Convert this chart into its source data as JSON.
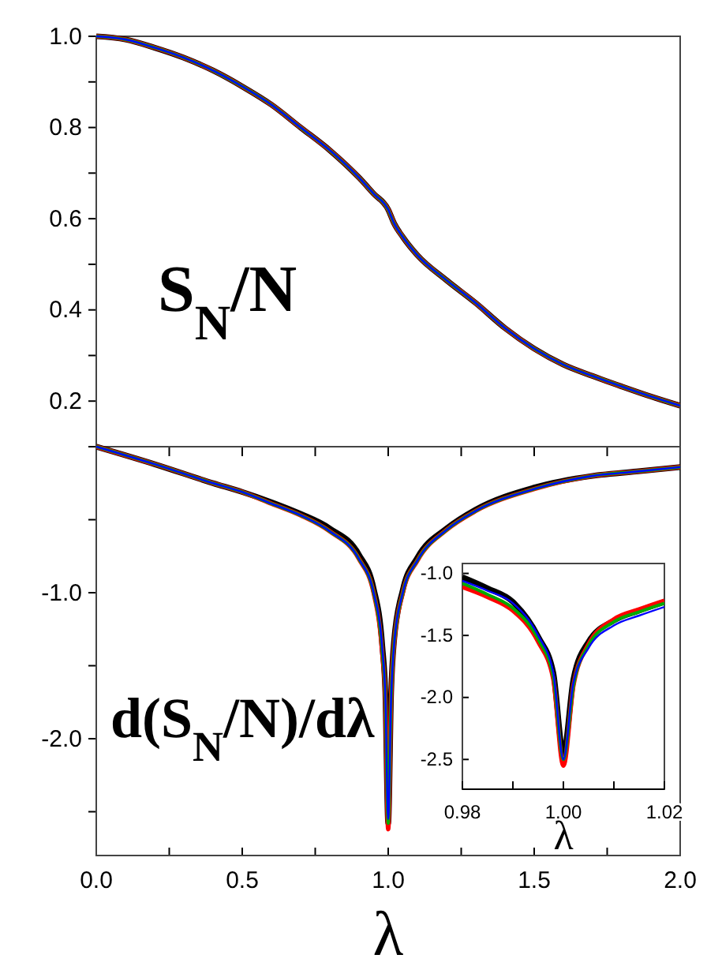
{
  "chart_data": [
    {
      "type": "line",
      "x": [
        0,
        0.1,
        0.2,
        0.3,
        0.4,
        0.5,
        0.6,
        0.7,
        0.8,
        0.9,
        0.95,
        1.0,
        1.02,
        1.05,
        1.1,
        1.2,
        1.3,
        1.4,
        1.5,
        1.6,
        1.7,
        1.8,
        1.9,
        2.0
      ],
      "series": [
        {
          "color": "#000000",
          "values": [
            1.0,
            0.993,
            0.975,
            0.953,
            0.925,
            0.89,
            0.85,
            0.8,
            0.75,
            0.69,
            0.655,
            0.62,
            0.59,
            0.56,
            0.52,
            0.465,
            0.415,
            0.36,
            0.315,
            0.28,
            0.255,
            0.232,
            0.21,
            0.19
          ]
        },
        {
          "color": "#ff0000",
          "values": [
            1.0,
            0.993,
            0.975,
            0.953,
            0.925,
            0.89,
            0.85,
            0.8,
            0.75,
            0.69,
            0.655,
            0.62,
            0.59,
            0.56,
            0.52,
            0.465,
            0.415,
            0.36,
            0.315,
            0.28,
            0.255,
            0.232,
            0.21,
            0.19
          ]
        },
        {
          "color": "#00aa00",
          "values": [
            1.0,
            0.993,
            0.975,
            0.953,
            0.925,
            0.89,
            0.85,
            0.8,
            0.75,
            0.69,
            0.655,
            0.62,
            0.59,
            0.56,
            0.52,
            0.465,
            0.415,
            0.36,
            0.315,
            0.28,
            0.255,
            0.232,
            0.21,
            0.19
          ]
        },
        {
          "color": "#0000ff",
          "values": [
            1.0,
            0.993,
            0.975,
            0.953,
            0.925,
            0.89,
            0.85,
            0.8,
            0.75,
            0.69,
            0.655,
            0.62,
            0.59,
            0.56,
            0.52,
            0.465,
            0.415,
            0.36,
            0.315,
            0.28,
            0.255,
            0.232,
            0.21,
            0.19
          ]
        }
      ],
      "xlim": [
        0,
        2
      ],
      "xticks": [
        {
          "value": 0,
          "label": null
        },
        {
          "value": 0.25,
          "label": null
        },
        {
          "value": 0.5,
          "label": null
        },
        {
          "value": 0.75,
          "label": null
        },
        {
          "value": 1,
          "label": null
        },
        {
          "value": 1.25,
          "label": null
        },
        {
          "value": 1.5,
          "label": null
        },
        {
          "value": 1.75,
          "label": null
        },
        {
          "value": 2,
          "label": null
        }
      ],
      "ylim": [
        0.1,
        1.0
      ],
      "yticks": [
        {
          "value": 0.1,
          "label": null
        },
        {
          "value": 0.2,
          "label": "0.2"
        },
        {
          "value": 0.3,
          "label": null
        },
        {
          "value": 0.4,
          "label": "0.4"
        },
        {
          "value": 0.5,
          "label": null
        },
        {
          "value": 0.6,
          "label": "0.6"
        },
        {
          "value": 0.7,
          "label": null
        },
        {
          "value": 0.8,
          "label": "0.8"
        },
        {
          "value": 0.9,
          "label": null
        },
        {
          "value": 1.0,
          "label": "1.0"
        }
      ],
      "tick_labels": "y",
      "annotations": [
        "S$_{N}$/N"
      ],
      "line_style": "solid",
      "marker": "none",
      "grid": false
    },
    {
      "type": "line",
      "x": [
        0,
        0.2,
        0.4,
        0.5,
        0.6,
        0.7,
        0.8,
        0.9,
        0.95,
        0.98,
        0.99,
        1.0,
        1.01,
        1.02,
        1.05,
        1.1,
        1.2,
        1.3,
        1.5,
        1.7,
        1.85,
        2.0
      ],
      "series": [
        {
          "color": "#000000",
          "values": [
            0,
            -0.12,
            -0.25,
            -0.31,
            -0.38,
            -0.46,
            -0.56,
            -0.74,
            -0.97,
            -1.37,
            -1.68,
            -2.58,
            -1.68,
            -1.33,
            -0.98,
            -0.76,
            -0.56,
            -0.43,
            -0.28,
            -0.2,
            -0.17,
            -0.14
          ]
        },
        {
          "color": "#ff0000",
          "values": [
            0,
            -0.12,
            -0.25,
            -0.31,
            -0.39,
            -0.47,
            -0.58,
            -0.77,
            -1.0,
            -1.42,
            -1.72,
            -2.62,
            -1.7,
            -1.35,
            -1.0,
            -0.78,
            -0.57,
            -0.44,
            -0.29,
            -0.2,
            -0.17,
            -0.14
          ]
        },
        {
          "color": "#00aa00",
          "values": [
            0,
            -0.12,
            -0.25,
            -0.31,
            -0.39,
            -0.47,
            -0.58,
            -0.77,
            -1.0,
            -1.41,
            -1.71,
            -2.58,
            -1.71,
            -1.35,
            -1.0,
            -0.78,
            -0.57,
            -0.44,
            -0.29,
            -0.2,
            -0.17,
            -0.14
          ]
        },
        {
          "color": "#0000ff",
          "values": [
            0,
            -0.12,
            -0.25,
            -0.31,
            -0.39,
            -0.47,
            -0.58,
            -0.77,
            -1.0,
            -1.39,
            -1.7,
            -2.55,
            -1.72,
            -1.36,
            -1.0,
            -0.78,
            -0.57,
            -0.44,
            -0.29,
            -0.2,
            -0.17,
            -0.14
          ]
        }
      ],
      "xlim": [
        0,
        2
      ],
      "xticks": [
        {
          "value": 0,
          "label": "0.0"
        },
        {
          "value": 0.25,
          "label": null
        },
        {
          "value": 0.5,
          "label": "0.5"
        },
        {
          "value": 0.75,
          "label": null
        },
        {
          "value": 1,
          "label": "1.0"
        },
        {
          "value": 1.25,
          "label": null
        },
        {
          "value": 1.5,
          "label": "1.5"
        },
        {
          "value": 1.75,
          "label": null
        },
        {
          "value": 2,
          "label": "2.0"
        }
      ],
      "ylim": [
        -2.8,
        0
      ],
      "yticks": [
        {
          "value": -0.5,
          "label": null
        },
        {
          "value": -1,
          "label": "-1.0"
        },
        {
          "value": -1.5,
          "label": null
        },
        {
          "value": -2,
          "label": "-2.0"
        },
        {
          "value": -2.5,
          "label": null
        }
      ],
      "xlabel": "λ",
      "annotations": [
        "d(S$_{N}$/N)/dλ"
      ],
      "line_style": "solid",
      "marker": "none",
      "grid": false
    },
    {
      "type": "line",
      "x": [
        0.98,
        0.985,
        0.99,
        0.995,
        0.998,
        1.0,
        1.002,
        1.005,
        1.01,
        1.015,
        1.02
      ],
      "series": [
        {
          "color": "#000000",
          "values": [
            -1.03,
            -1.12,
            -1.23,
            -1.51,
            -1.8,
            -2.45,
            -1.85,
            -1.55,
            -1.38,
            -1.3,
            -1.23
          ]
        },
        {
          "color": "#ff0000",
          "values": [
            -1.11,
            -1.19,
            -1.3,
            -1.55,
            -1.85,
            -2.55,
            -1.9,
            -1.57,
            -1.37,
            -1.29,
            -1.22
          ]
        },
        {
          "color": "#00aa00",
          "values": [
            -1.08,
            -1.17,
            -1.28,
            -1.53,
            -1.83,
            -2.5,
            -1.9,
            -1.58,
            -1.39,
            -1.31,
            -1.24
          ]
        },
        {
          "color": "#0000ff",
          "values": [
            -1.06,
            -1.14,
            -1.24,
            -1.5,
            -1.8,
            -2.5,
            -1.88,
            -1.6,
            -1.42,
            -1.34,
            -1.27
          ]
        }
      ],
      "xlim": [
        0.98,
        1.02
      ],
      "xticks": [
        {
          "value": 0.98,
          "label": "0.98"
        },
        {
          "value": 0.99,
          "label": null
        },
        {
          "value": 1.0,
          "label": "1.00"
        },
        {
          "value": 1.01,
          "label": null
        },
        {
          "value": 1.02,
          "label": "1.02"
        }
      ],
      "ylim": [
        -2.74,
        -0.92
      ],
      "yticks": [
        {
          "value": -1,
          "label": "-1.0"
        },
        {
          "value": -1.5,
          "label": "-1.5"
        },
        {
          "value": -2,
          "label": "-2.0"
        },
        {
          "value": -2.5,
          "label": "-2.5"
        }
      ],
      "xlabel": "λ",
      "line_style": "solid",
      "marker": "none",
      "grid": false
    }
  ]
}
